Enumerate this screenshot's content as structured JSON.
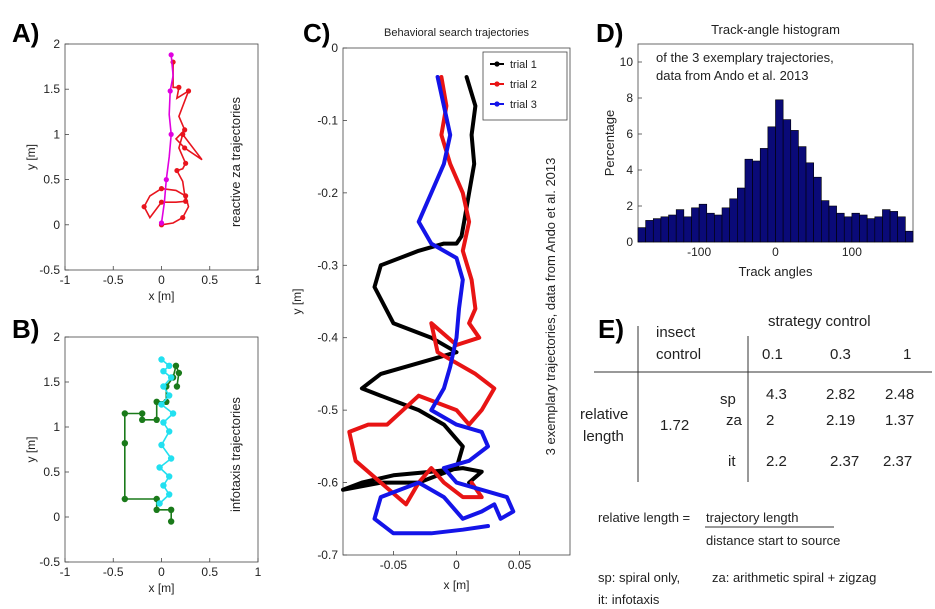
{
  "panels": {
    "A": "A)",
    "B": "B)",
    "C": "C)",
    "D": "D)",
    "E": "E)"
  },
  "chart_data": [
    {
      "id": "A",
      "type": "line",
      "title": "",
      "xlabel": "x [m]",
      "ylabel": "y [m]",
      "xlim": [
        -1,
        1
      ],
      "ylim": [
        -0.5,
        2
      ],
      "xticks": [
        "-1",
        "-0.5",
        "0",
        "0.5",
        "1"
      ],
      "yticks": [
        "-0.5",
        "0",
        "0.5",
        "1",
        "1.5",
        "2"
      ],
      "annotation": "reactive za trajectories",
      "series": [
        {
          "color": "#e8141e",
          "x": [
            0.0,
            0.12,
            0.22,
            0.28,
            0.25,
            0.15,
            0.0,
            -0.12,
            -0.18,
            -0.12,
            0.0,
            0.15,
            0.25,
            0.22,
            0.16,
            0.22,
            0.25,
            0.18,
            0.22,
            0.42,
            0.24,
            0.15,
            0.24,
            0.18,
            0.28,
            0.16,
            0.18,
            0.12,
            0.12
          ],
          "y": [
            0.0,
            0.02,
            0.08,
            0.2,
            0.32,
            0.38,
            0.4,
            0.32,
            0.2,
            0.08,
            0.25,
            0.25,
            0.26,
            0.48,
            0.6,
            0.62,
            0.68,
            0.85,
            1.0,
            0.72,
            0.85,
            0.95,
            1.05,
            1.2,
            1.48,
            1.4,
            1.52,
            1.52,
            1.8
          ]
        },
        {
          "color": "#e000e0",
          "x": [
            0.0,
            0.03,
            0.05,
            0.08,
            0.1,
            0.08,
            0.09,
            0.12,
            0.1
          ],
          "y": [
            0.02,
            0.25,
            0.5,
            0.75,
            1.0,
            1.22,
            1.48,
            1.65,
            1.88
          ]
        }
      ]
    },
    {
      "id": "B",
      "type": "line",
      "title": "",
      "xlabel": "x [m]",
      "ylabel": "y [m]",
      "xlim": [
        -1,
        1
      ],
      "ylim": [
        -0.5,
        2
      ],
      "xticks": [
        "-1",
        "-0.5",
        "0",
        "0.5",
        "1"
      ],
      "yticks": [
        "-0.5",
        "0",
        "0.5",
        "1",
        "1.5",
        "2"
      ],
      "annotation": "infotaxis trajectories",
      "series": [
        {
          "color": "#1a7a1a",
          "x": [
            0.1,
            0.1,
            -0.05,
            -0.05,
            -0.38,
            -0.38,
            -0.38,
            -0.2,
            -0.2,
            -0.05,
            -0.05,
            0.05,
            0.05,
            0.12,
            0.15,
            0.18,
            0.16
          ],
          "y": [
            -0.05,
            0.08,
            0.08,
            0.2,
            0.2,
            0.82,
            1.15,
            1.15,
            1.08,
            1.08,
            1.28,
            1.28,
            1.45,
            1.55,
            1.68,
            1.6,
            1.45
          ]
        },
        {
          "color": "#22e0f0",
          "x": [
            -0.02,
            0.08,
            0.02,
            0.08,
            -0.02,
            0.1,
            0.0,
            0.08,
            0.02,
            0.12,
            0.0,
            0.08,
            0.02,
            0.1,
            0.02,
            0.08,
            0.0
          ],
          "y": [
            0.15,
            0.25,
            0.35,
            0.45,
            0.55,
            0.65,
            0.8,
            0.95,
            1.05,
            1.15,
            1.25,
            1.35,
            1.45,
            1.55,
            1.62,
            1.68,
            1.75
          ]
        }
      ]
    },
    {
      "id": "C",
      "type": "line",
      "title": "Behavioral search trajectories",
      "xlabel": "x [m]",
      "ylabel": "y [m]",
      "xlim": [
        -0.09,
        0.09
      ],
      "ylim": [
        -0.7,
        0
      ],
      "xticks": [
        "-0.05",
        "0",
        "0.05"
      ],
      "yticks": [
        "0",
        "-0.1",
        "-0.2",
        "-0.3",
        "-0.4",
        "-0.5",
        "-0.6",
        "-0.7"
      ],
      "annotation": "3 exemplary trajectories, data from Ando et al. 2013",
      "legend": "top-right",
      "series": [
        {
          "name": "trial 1",
          "color": "#000000",
          "x": [
            0.008,
            0.015,
            0.012,
            0.014,
            0.01,
            0.006,
            0.004,
            0.0,
            -0.01,
            -0.03,
            -0.06,
            -0.065,
            -0.05,
            -0.02,
            0.0,
            -0.02,
            -0.06,
            -0.075,
            -0.06,
            -0.03,
            -0.01,
            0.005,
            0.0,
            -0.03,
            -0.06,
            -0.09,
            -0.075,
            -0.05,
            -0.02,
            0.005,
            0.02,
            0.01
          ],
          "y": [
            -0.04,
            -0.08,
            -0.12,
            -0.16,
            -0.2,
            -0.24,
            -0.26,
            -0.27,
            -0.27,
            -0.28,
            -0.3,
            -0.33,
            -0.38,
            -0.4,
            -0.42,
            -0.43,
            -0.45,
            -0.47,
            -0.48,
            -0.5,
            -0.52,
            -0.55,
            -0.58,
            -0.6,
            -0.6,
            -0.61,
            -0.6,
            -0.59,
            -0.585,
            -0.58,
            -0.585,
            -0.6
          ]
        },
        {
          "name": "trial 2",
          "color": "#e81414",
          "x": [
            -0.012,
            -0.008,
            -0.012,
            -0.005,
            0.005,
            0.01,
            0.005,
            0.012,
            0.015,
            0.01,
            0.018,
            0.0,
            -0.02,
            -0.015,
            0.015,
            0.03,
            0.02,
            0.01,
            0.0,
            -0.03,
            -0.055,
            -0.07,
            -0.085,
            -0.08,
            -0.06,
            -0.04,
            -0.03,
            -0.02,
            -0.01,
            0.005,
            0.02,
            0.012
          ],
          "y": [
            -0.04,
            -0.08,
            -0.12,
            -0.16,
            -0.2,
            -0.24,
            -0.28,
            -0.32,
            -0.36,
            -0.38,
            -0.4,
            -0.41,
            -0.38,
            -0.42,
            -0.45,
            -0.47,
            -0.5,
            -0.52,
            -0.5,
            -0.48,
            -0.52,
            -0.52,
            -0.53,
            -0.57,
            -0.6,
            -0.63,
            -0.6,
            -0.58,
            -0.6,
            -0.62,
            -0.62,
            -0.6
          ]
        },
        {
          "name": "trial 3",
          "color": "#1414e8",
          "x": [
            -0.015,
            -0.01,
            -0.005,
            -0.01,
            -0.02,
            -0.03,
            -0.02,
            0.0,
            0.005,
            0.002,
            0.0,
            -0.005,
            -0.01,
            -0.02,
            0.0,
            0.02,
            0.025,
            0.01,
            -0.01,
            0.0,
            0.02,
            0.04,
            0.045,
            0.035,
            0.03,
            0.02,
            0.005,
            -0.01,
            -0.03,
            -0.06,
            -0.065,
            -0.05,
            -0.02,
            0.005,
            0.025
          ],
          "y": [
            -0.04,
            -0.08,
            -0.12,
            -0.16,
            -0.2,
            -0.24,
            -0.27,
            -0.29,
            -0.32,
            -0.36,
            -0.4,
            -0.44,
            -0.47,
            -0.5,
            -0.52,
            -0.53,
            -0.55,
            -0.57,
            -0.58,
            -0.6,
            -0.61,
            -0.62,
            -0.64,
            -0.65,
            -0.63,
            -0.64,
            -0.65,
            -0.62,
            -0.6,
            -0.62,
            -0.65,
            -0.67,
            -0.67,
            -0.665,
            -0.66
          ]
        }
      ]
    },
    {
      "id": "D",
      "type": "bar",
      "title": "Track-angle histogram",
      "xlabel": "Track angles",
      "ylabel": "Percentage",
      "xlim": [
        -180,
        180
      ],
      "ylim": [
        0,
        11
      ],
      "xticks": [
        "-100",
        "0",
        "100"
      ],
      "yticks": [
        "0",
        "2",
        "4",
        "6",
        "8",
        "10"
      ],
      "annotation": [
        "of the 3 exemplary trajectories,",
        "data from Ando et al. 2013"
      ],
      "bar_color": "#0a0a78",
      "bin_width": 10,
      "centers": [
        -175,
        -165,
        -155,
        -145,
        -135,
        -125,
        -115,
        -105,
        -95,
        -85,
        -75,
        -65,
        -55,
        -45,
        -35,
        -25,
        -15,
        -5,
        5,
        15,
        25,
        35,
        45,
        55,
        65,
        75,
        85,
        95,
        105,
        115,
        125,
        135,
        145,
        155,
        165,
        175
      ],
      "values": [
        0.8,
        1.2,
        1.3,
        1.4,
        1.5,
        1.8,
        1.4,
        1.9,
        2.1,
        1.6,
        1.5,
        1.9,
        2.4,
        3.0,
        4.6,
        4.5,
        5.2,
        6.4,
        7.9,
        6.8,
        6.2,
        5.3,
        4.4,
        3.6,
        2.3,
        2.0,
        1.6,
        1.4,
        1.6,
        1.5,
        1.3,
        1.4,
        1.8,
        1.7,
        1.4,
        0.6
      ]
    }
  ],
  "table": {
    "insect_control": [
      "insect",
      "control"
    ],
    "strategy_control": "strategy control",
    "col_values": [
      "0.1",
      "0.3",
      "1"
    ],
    "row_group": [
      "relative",
      "length"
    ],
    "insect_value": "1.72",
    "rows": [
      {
        "label": "sp",
        "values": [
          "4.3",
          "2.82",
          "2.48"
        ]
      },
      {
        "label": "za",
        "values": [
          "2",
          "2.19",
          "1.37"
        ]
      },
      {
        "label": "it",
        "values": [
          "2.2",
          "2.37",
          "2.37"
        ]
      }
    ],
    "formula_lhs": "relative length =",
    "formula_num": "trajectory length",
    "formula_den": "distance start to source",
    "legend_sp": "sp: spiral only,",
    "legend_za": "za: arithmetic spiral + zigzag",
    "legend_it": "it: infotaxis"
  }
}
